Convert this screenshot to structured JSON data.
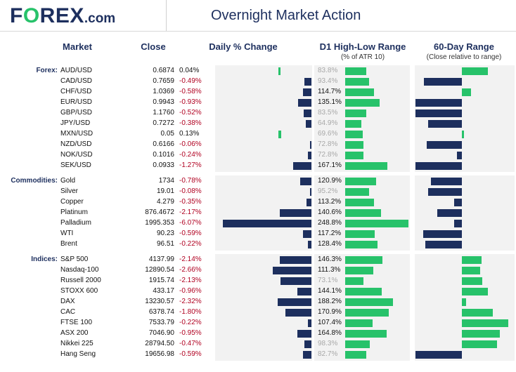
{
  "header": {
    "logo_pre": "F",
    "logo_o": "O",
    "logo_post": "REX",
    "logo_dom": ".com",
    "title": "Overnight Market Action"
  },
  "columns": {
    "market": "Market",
    "close": "Close",
    "daily": "Daily % Change",
    "hl": "D1 High-Low Range",
    "hl_sub": "(% of ATR 10)",
    "range60": "60-Day Range",
    "range60_sub": "(Close relative to range)"
  },
  "colors": {
    "navy": "#1d2f5e",
    "green": "#27c26a",
    "negative": "#b00020",
    "panel": "#f2f2f2"
  },
  "chart_data": {
    "type": "table",
    "groups": [
      {
        "label": "Forex:",
        "rows": [
          {
            "name": "AUD/USD",
            "close": "0.6874",
            "pct": "0.04%",
            "pct_v": 0.04,
            "atr": "83.8%",
            "atr_v": 83.8,
            "atr_dim": true,
            "range_v": 0.55
          },
          {
            "name": "CAD/USD",
            "close": "0.7659",
            "pct": "-0.49%",
            "pct_v": -0.49,
            "atr": "93.4%",
            "atr_v": 93.4,
            "atr_dim": true,
            "range_v": -0.8
          },
          {
            "name": "CHF/USD",
            "close": "1.0369",
            "pct": "-0.58%",
            "pct_v": -0.58,
            "atr": "114.7%",
            "atr_v": 114.7,
            "atr_dim": false,
            "range_v": 0.2
          },
          {
            "name": "EUR/USD",
            "close": "0.9943",
            "pct": "-0.93%",
            "pct_v": -0.93,
            "atr": "135.1%",
            "atr_v": 135.1,
            "atr_dim": false,
            "range_v": -0.98
          },
          {
            "name": "GBP/USD",
            "close": "1.1760",
            "pct": "-0.52%",
            "pct_v": -0.52,
            "atr": "83.5%",
            "atr_v": 83.5,
            "atr_dim": true,
            "range_v": -0.98
          },
          {
            "name": "JPY/USD",
            "close": "0.7272",
            "pct": "-0.38%",
            "pct_v": -0.38,
            "atr": "64.9%",
            "atr_v": 64.9,
            "atr_dim": true,
            "range_v": -0.71
          },
          {
            "name": "MXN/USD",
            "close": "0.05",
            "pct": "0.13%",
            "pct_v": 0.13,
            "atr": "69.6%",
            "atr_v": 69.6,
            "atr_dim": true,
            "range_v": 0.05
          },
          {
            "name": "NZD/USD",
            "close": "0.6166",
            "pct": "-0.06%",
            "pct_v": -0.06,
            "atr": "72.8%",
            "atr_v": 72.8,
            "atr_dim": true,
            "range_v": -0.75
          },
          {
            "name": "NOK/USD",
            "close": "0.1016",
            "pct": "-0.24%",
            "pct_v": -0.24,
            "atr": "72.8%",
            "atr_v": 72.8,
            "atr_dim": true,
            "range_v": -0.11
          },
          {
            "name": "SEK/USD",
            "close": "0.0933",
            "pct": "-1.27%",
            "pct_v": -1.27,
            "atr": "167.1%",
            "atr_v": 167.1,
            "atr_dim": false,
            "range_v": -0.98
          }
        ]
      },
      {
        "label": "Commodities:",
        "rows": [
          {
            "name": "Gold",
            "close": "1734",
            "pct": "-0.78%",
            "pct_v": -0.78,
            "atr": "120.9%",
            "atr_v": 120.9,
            "atr_dim": false,
            "range_v": -0.66
          },
          {
            "name": "Silver",
            "close": "19.01",
            "pct": "-0.08%",
            "pct_v": -0.08,
            "atr": "95.2%",
            "atr_v": 95.2,
            "atr_dim": true,
            "range_v": -0.71
          },
          {
            "name": "Copper",
            "close": "4.279",
            "pct": "-0.35%",
            "pct_v": -0.35,
            "atr": "113.2%",
            "atr_v": 113.2,
            "atr_dim": false,
            "range_v": -0.17
          },
          {
            "name": "Platinum",
            "close": "876.4672",
            "pct": "-2.17%",
            "pct_v": -2.17,
            "atr": "140.6%",
            "atr_v": 140.6,
            "atr_dim": false,
            "range_v": -0.52
          },
          {
            "name": "Palladium",
            "close": "1995.353",
            "pct": "-6.07%",
            "pct_v": -6.07,
            "atr": "248.8%",
            "atr_v": 248.8,
            "atr_dim": false,
            "range_v": -0.17
          },
          {
            "name": "WTI",
            "close": "90.23",
            "pct": "-0.59%",
            "pct_v": -0.59,
            "atr": "117.2%",
            "atr_v": 117.2,
            "atr_dim": false,
            "range_v": -0.82
          },
          {
            "name": "Brent",
            "close": "96.51",
            "pct": "-0.22%",
            "pct_v": -0.22,
            "atr": "128.4%",
            "atr_v": 128.4,
            "atr_dim": false,
            "range_v": -0.77
          }
        ]
      },
      {
        "label": "Indices:",
        "rows": [
          {
            "name": "S&P 500",
            "close": "4137.99",
            "pct": "-2.14%",
            "pct_v": -2.14,
            "atr": "146.3%",
            "atr_v": 146.3,
            "atr_dim": false,
            "range_v": 0.42
          },
          {
            "name": "Nasdaq-100",
            "close": "12890.54",
            "pct": "-2.66%",
            "pct_v": -2.66,
            "atr": "111.3%",
            "atr_v": 111.3,
            "atr_dim": false,
            "range_v": 0.39
          },
          {
            "name": "Russell 2000",
            "close": "1915.74",
            "pct": "-2.13%",
            "pct_v": -2.13,
            "atr": "73.1%",
            "atr_v": 73.1,
            "atr_dim": true,
            "range_v": 0.44
          },
          {
            "name": "STOXX 600",
            "close": "433.17",
            "pct": "-0.96%",
            "pct_v": -0.96,
            "atr": "144.1%",
            "atr_v": 144.1,
            "atr_dim": false,
            "range_v": 0.55
          },
          {
            "name": "DAX",
            "close": "13230.57",
            "pct": "-2.32%",
            "pct_v": -2.32,
            "atr": "188.2%",
            "atr_v": 188.2,
            "atr_dim": false,
            "range_v": 0.09
          },
          {
            "name": "CAC",
            "close": "6378.74",
            "pct": "-1.80%",
            "pct_v": -1.8,
            "atr": "170.9%",
            "atr_v": 170.9,
            "atr_dim": false,
            "range_v": 0.66
          },
          {
            "name": "FTSE 100",
            "close": "7533.79",
            "pct": "-0.22%",
            "pct_v": -0.22,
            "atr": "107.4%",
            "atr_v": 107.4,
            "atr_dim": false,
            "range_v": 0.98
          },
          {
            "name": "ASX 200",
            "close": "7046.90",
            "pct": "-0.95%",
            "pct_v": -0.95,
            "atr": "164.8%",
            "atr_v": 164.8,
            "atr_dim": false,
            "range_v": 0.8
          },
          {
            "name": "Nikkei 225",
            "close": "28794.50",
            "pct": "-0.47%",
            "pct_v": -0.47,
            "atr": "98.3%",
            "atr_v": 98.3,
            "atr_dim": true,
            "range_v": 0.75
          },
          {
            "name": "Hang Seng",
            "close": "19656.98",
            "pct": "-0.59%",
            "pct_v": -0.59,
            "atr": "82.7%",
            "atr_v": 82.7,
            "atr_dim": true,
            "range_v": -0.98
          }
        ]
      }
    ]
  }
}
